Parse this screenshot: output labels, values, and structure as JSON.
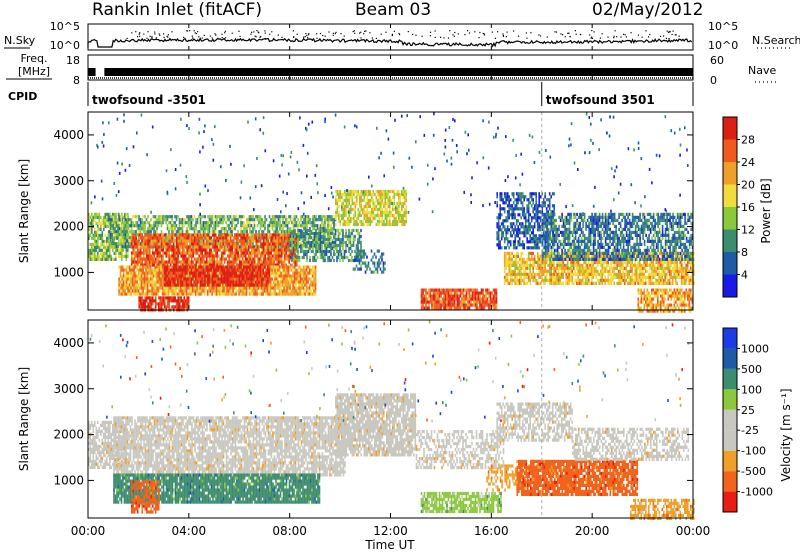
{
  "header": {
    "station": "Rankin Inlet (fitACF)",
    "beam": "Beam 03",
    "date": "02/May/2012"
  },
  "aux": {
    "nsky_label": "N.Sky",
    "nsearch_label": "N.Search",
    "freq_label_top": "Freq.",
    "freq_label_unit": "[MHz]",
    "nave_label": "Nave",
    "cpid_label": "CPID",
    "nsky_ticks": [
      "10^5",
      "10^0"
    ],
    "nsearch_ticks": [
      "10^5",
      "10^0"
    ],
    "freq_ticks": [
      "18",
      "8"
    ],
    "nave_ticks": [
      "60",
      "0"
    ],
    "cpid_segments": [
      {
        "name": "twofsound",
        "id": "-3501",
        "start_h": 0.0
      },
      {
        "name": "twofsound",
        "id": "3501",
        "start_h": 18.0
      }
    ]
  },
  "colors": {
    "power": [
      "#1a1ae6",
      "#1e5aa8",
      "#3c8c6e",
      "#8cc83c",
      "#f0dc3c",
      "#f0a028",
      "#f05a1e",
      "#dc1e14"
    ],
    "velocity": [
      "#e61e14",
      "#f0641e",
      "#f0a028",
      "#c8c8c0",
      "#c8c8c0",
      "#8cc83c",
      "#3c8c6e",
      "#1e5aa8",
      "#1e3ce6"
    ],
    "marker": "#aaaaaa"
  },
  "chart_data": [
    {
      "type": "heatmap",
      "name": "power",
      "ylabel": "Slant Range [km]",
      "xlabel": "",
      "yticks": [
        1000,
        2000,
        3000,
        4000
      ],
      "ylim": [
        180,
        4500
      ],
      "xlim": [
        0,
        24
      ],
      "colorbar": {
        "label": "Power [dB]",
        "ticks": [
          4,
          8,
          12,
          16,
          20,
          24,
          28
        ],
        "range": [
          0,
          32
        ]
      },
      "bands": [
        {
          "t_start": 0.0,
          "t_end": 1.6,
          "r_min": 1300,
          "r_max": 2300,
          "value": 14,
          "density": 0.75
        },
        {
          "t_start": 0.8,
          "t_end": 9.8,
          "r_min": 1550,
          "r_max": 2250,
          "value": 12,
          "density": 0.7
        },
        {
          "t_start": 1.7,
          "t_end": 8.3,
          "r_min": 1150,
          "r_max": 1850,
          "value": 26,
          "density": 0.85
        },
        {
          "t_start": 1.2,
          "t_end": 9.0,
          "r_min": 550,
          "r_max": 1150,
          "value": 22,
          "density": 0.9
        },
        {
          "t_start": 3.0,
          "t_end": 7.2,
          "r_min": 750,
          "r_max": 1150,
          "value": 30,
          "density": 0.9
        },
        {
          "t_start": 2.0,
          "t_end": 4.0,
          "r_min": 180,
          "r_max": 480,
          "value": 29,
          "density": 0.85
        },
        {
          "t_start": 8.0,
          "t_end": 10.8,
          "r_min": 1250,
          "r_max": 1950,
          "value": 10,
          "density": 0.6
        },
        {
          "t_start": 9.8,
          "t_end": 12.6,
          "r_min": 2050,
          "r_max": 2800,
          "value": 17,
          "density": 0.75
        },
        {
          "t_start": 10.5,
          "t_end": 11.8,
          "r_min": 1000,
          "r_max": 1500,
          "value": 8,
          "density": 0.4
        },
        {
          "t_start": 13.2,
          "t_end": 16.2,
          "r_min": 250,
          "r_max": 650,
          "value": 27,
          "density": 0.9
        },
        {
          "t_start": 16.2,
          "t_end": 18.5,
          "r_min": 1550,
          "r_max": 2750,
          "value": 6,
          "density": 0.6
        },
        {
          "t_start": 16.5,
          "t_end": 24.0,
          "r_min": 750,
          "r_max": 1450,
          "value": 20,
          "density": 0.8
        },
        {
          "t_start": 18.0,
          "t_end": 24.0,
          "r_min": 1300,
          "r_max": 2300,
          "value": 8,
          "density": 0.65
        },
        {
          "t_start": 21.8,
          "t_end": 24.0,
          "r_min": 180,
          "r_max": 650,
          "value": 22,
          "density": 0.7
        }
      ]
    },
    {
      "type": "heatmap",
      "name": "velocity",
      "ylabel": "Slant Range [km]",
      "xlabel": "Time UT",
      "xticks": [
        "00:00",
        "04:00",
        "08:00",
        "12:00",
        "16:00",
        "20:00",
        "00:00"
      ],
      "yticks": [
        1000,
        2000,
        3000,
        4000
      ],
      "ylim": [
        180,
        4500
      ],
      "xlim": [
        0,
        24
      ],
      "colorbar": {
        "label": "Velocity [m s⁻¹]",
        "ticks": [
          "1000",
          "500",
          "100",
          "25",
          "-25",
          "-100",
          "-500",
          "-1000"
        ]
      },
      "bands": [
        {
          "t_start": 0.0,
          "t_end": 1.5,
          "r_min": 1300,
          "r_max": 2300,
          "value": "-25..25",
          "density": 0.7
        },
        {
          "t_start": 1.0,
          "t_end": 10.2,
          "r_min": 1150,
          "r_max": 2400,
          "value": "-25..25",
          "density": 0.8
        },
        {
          "t_start": 9.8,
          "t_end": 13.0,
          "r_min": 1550,
          "r_max": 2900,
          "value": "-25..25",
          "density": 0.8
        },
        {
          "t_start": 13.0,
          "t_end": 16.5,
          "r_min": 1250,
          "r_max": 2100,
          "value": "-25..25",
          "density": 0.5
        },
        {
          "t_start": 1.0,
          "t_end": 9.2,
          "r_min": 500,
          "r_max": 1150,
          "value": "100..500",
          "density": 0.9
        },
        {
          "t_start": 1.7,
          "t_end": 2.8,
          "r_min": 300,
          "r_max": 1000,
          "value": "-500..-100",
          "density": 0.7
        },
        {
          "t_start": 13.2,
          "t_end": 16.4,
          "r_min": 300,
          "r_max": 750,
          "value": "25..100",
          "density": 0.75
        },
        {
          "t_start": 15.8,
          "t_end": 17.8,
          "r_min": 800,
          "r_max": 1350,
          "value": "-100..-25",
          "density": 0.5
        },
        {
          "t_start": 16.2,
          "t_end": 19.2,
          "r_min": 1850,
          "r_max": 2700,
          "value": "-25..25",
          "density": 0.6
        },
        {
          "t_start": 17.0,
          "t_end": 21.8,
          "r_min": 700,
          "r_max": 1450,
          "value": "-500..-100",
          "density": 0.85
        },
        {
          "t_start": 19.2,
          "t_end": 23.8,
          "r_min": 1450,
          "r_max": 2150,
          "value": "-25..25",
          "density": 0.55
        },
        {
          "t_start": 21.5,
          "t_end": 24.0,
          "r_min": 180,
          "r_max": 600,
          "value": "-100..-25",
          "density": 0.6
        }
      ]
    }
  ]
}
